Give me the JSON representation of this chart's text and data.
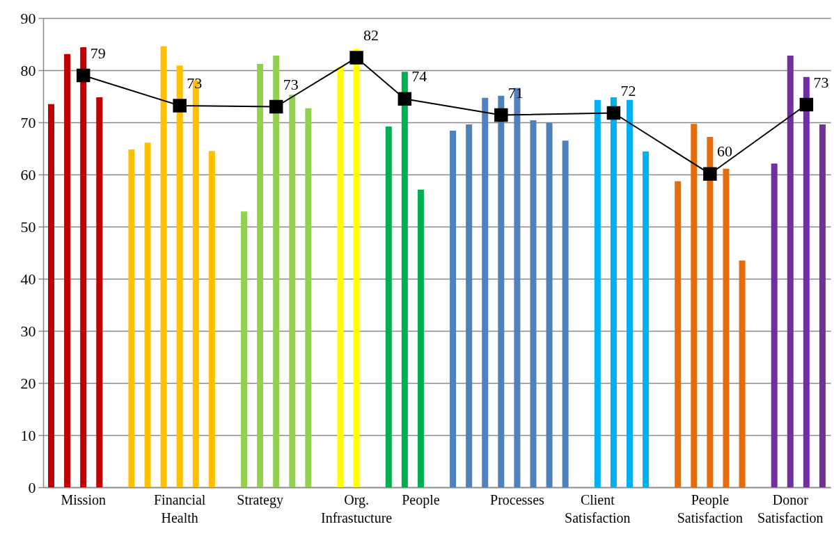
{
  "chart_data": {
    "type": "bar",
    "categories": [
      null,
      null,
      "Mission",
      null,
      null,
      null,
      null,
      null,
      "Financial Health",
      null,
      null,
      null,
      null,
      "Strategy",
      null,
      null,
      null,
      null,
      null,
      "Org. Infrastucture",
      null,
      null,
      null,
      "People",
      null,
      null,
      null,
      null,
      null,
      "Processes",
      null,
      null,
      null,
      null,
      "Client Satisfaction",
      null,
      null,
      null,
      null,
      null,
      null,
      "People Satisfaction",
      null,
      null,
      null,
      null,
      "Donor Satisfaction",
      null,
      null
    ],
    "ylim": [
      0,
      90
    ],
    "yticks": [
      0,
      10,
      20,
      30,
      40,
      50,
      60,
      70,
      80,
      90
    ],
    "grid": "y",
    "series": [
      {
        "values": [
          73.5,
          83.1,
          84.4,
          74.8,
          null,
          64.8,
          66.1,
          84.6,
          80.9,
          78.0,
          64.5,
          null,
          52.9,
          81.2,
          82.8,
          75.3,
          72.7,
          null,
          80.7,
          84.1,
          null,
          69.2,
          79.7,
          57.1,
          null,
          68.4,
          69.6,
          74.7,
          75.1,
          76.6,
          70.4,
          69.9,
          66.5,
          null,
          74.3,
          74.8,
          74.3,
          64.4,
          null,
          58.7,
          69.7,
          67.2,
          61.1,
          43.5,
          null,
          62.1,
          82.8,
          78.7,
          69.6
        ],
        "colors": [
          "#c00000",
          "#c00000",
          "#c00000",
          "#c00000",
          null,
          "#ffc000",
          "#ffc000",
          "#ffc000",
          "#ffc000",
          "#ffc000",
          "#ffc000",
          null,
          "#92d050",
          "#92d050",
          "#92d050",
          "#92d050",
          "#92d050",
          null,
          "#ffff00",
          "#ffff00",
          null,
          "#00b050",
          "#00b050",
          "#00b050",
          null,
          "#4f81bd",
          "#4f81bd",
          "#4f81bd",
          "#4f81bd",
          "#4f81bd",
          "#4f81bd",
          "#4f81bd",
          "#4f81bd",
          null,
          "#00b0f0",
          "#00b0f0",
          "#00b0f0",
          "#00b0f0",
          null,
          "#e46c0a",
          "#e46c0a",
          "#e46c0a",
          "#e46c0a",
          "#e46c0a",
          null,
          "#7030a0",
          "#7030a0",
          "#7030a0",
          "#7030a0"
        ]
      },
      {
        "type": "line",
        "color": "#000000",
        "marker": "square",
        "values": [
          null,
          null,
          79.0,
          null,
          null,
          null,
          null,
          null,
          73.2,
          null,
          null,
          null,
          null,
          null,
          73.0,
          null,
          null,
          null,
          null,
          82.4,
          null,
          null,
          74.5,
          null,
          null,
          null,
          null,
          null,
          71.4,
          null,
          null,
          null,
          null,
          null,
          null,
          71.8,
          null,
          null,
          null,
          null,
          null,
          60.1,
          null,
          null,
          null,
          null,
          null,
          73.4,
          null
        ],
        "value_labels": [
          null,
          null,
          "79",
          null,
          null,
          null,
          null,
          null,
          "73",
          null,
          null,
          null,
          null,
          null,
          "73",
          null,
          null,
          null,
          null,
          "82",
          null,
          null,
          "74",
          null,
          null,
          null,
          null,
          null,
          "71",
          null,
          null,
          null,
          null,
          null,
          null,
          "72",
          null,
          null,
          null,
          null,
          null,
          "60",
          null,
          null,
          null,
          null,
          null,
          "73",
          null
        ]
      }
    ]
  }
}
